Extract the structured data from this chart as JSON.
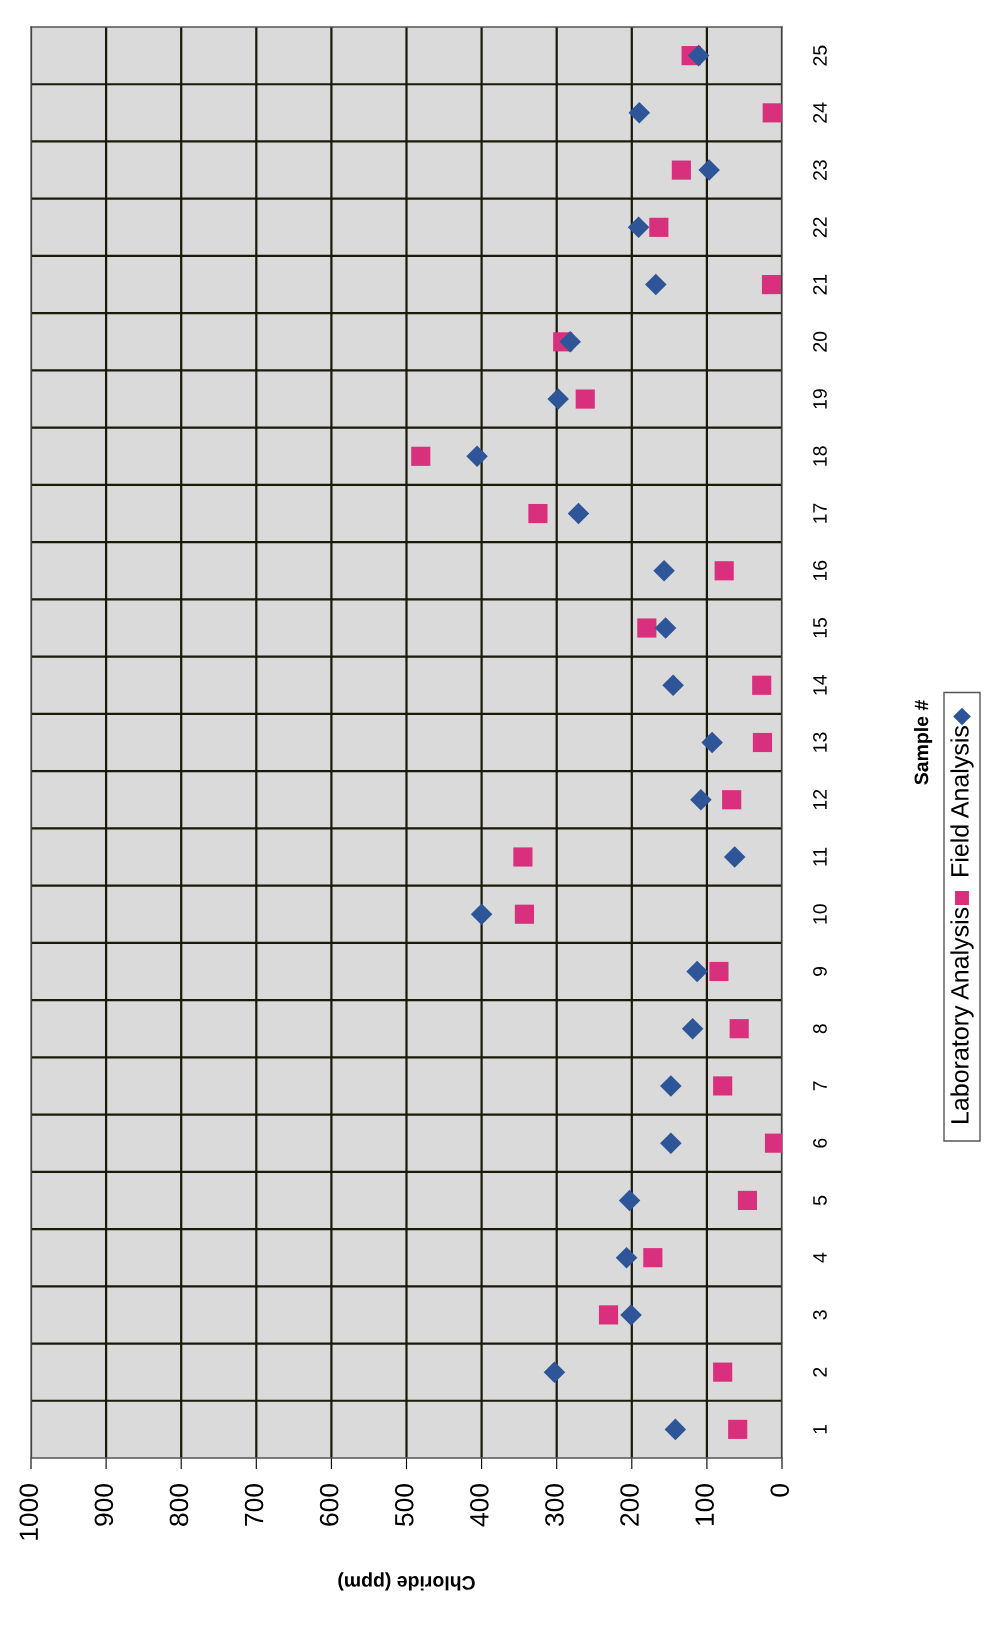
{
  "chart_data": {
    "type": "scatter",
    "orientation": "horizontal",
    "xlabel": "Chloride (ppm)",
    "ylabel": "Sample #",
    "categories": [
      "25",
      "24",
      "23",
      "22",
      "21",
      "20",
      "19",
      "18",
      "17",
      "16",
      "15",
      "14",
      "13",
      "12",
      "11",
      "10",
      "9",
      "8",
      "7",
      "6",
      "5",
      "4",
      "3",
      "2",
      "1"
    ],
    "series": [
      {
        "name": "Laboratory Analysis",
        "color": "#d8307c",
        "marker": "square",
        "values": [
          121,
          13,
          134,
          164,
          14,
          292,
          262,
          481,
          325,
          77,
          180,
          27,
          26,
          67,
          345,
          343,
          84,
          57,
          79,
          10,
          46,
          172,
          231,
          79,
          59
        ]
      },
      {
        "name": "Field Analysis",
        "color": "#2e5597",
        "marker": "diamond",
        "values": [
          111,
          190,
          97,
          191,
          168,
          282,
          298,
          406,
          271,
          157,
          155,
          145,
          93,
          108,
          63,
          400,
          113,
          119,
          148,
          148,
          203,
          207,
          201,
          303,
          142
        ]
      }
    ],
    "xlim": [
      1000,
      0
    ],
    "xticks": [
      1000,
      900,
      800,
      700,
      600,
      500,
      400,
      300,
      200,
      100,
      0
    ],
    "grid": true,
    "legend": "right"
  }
}
